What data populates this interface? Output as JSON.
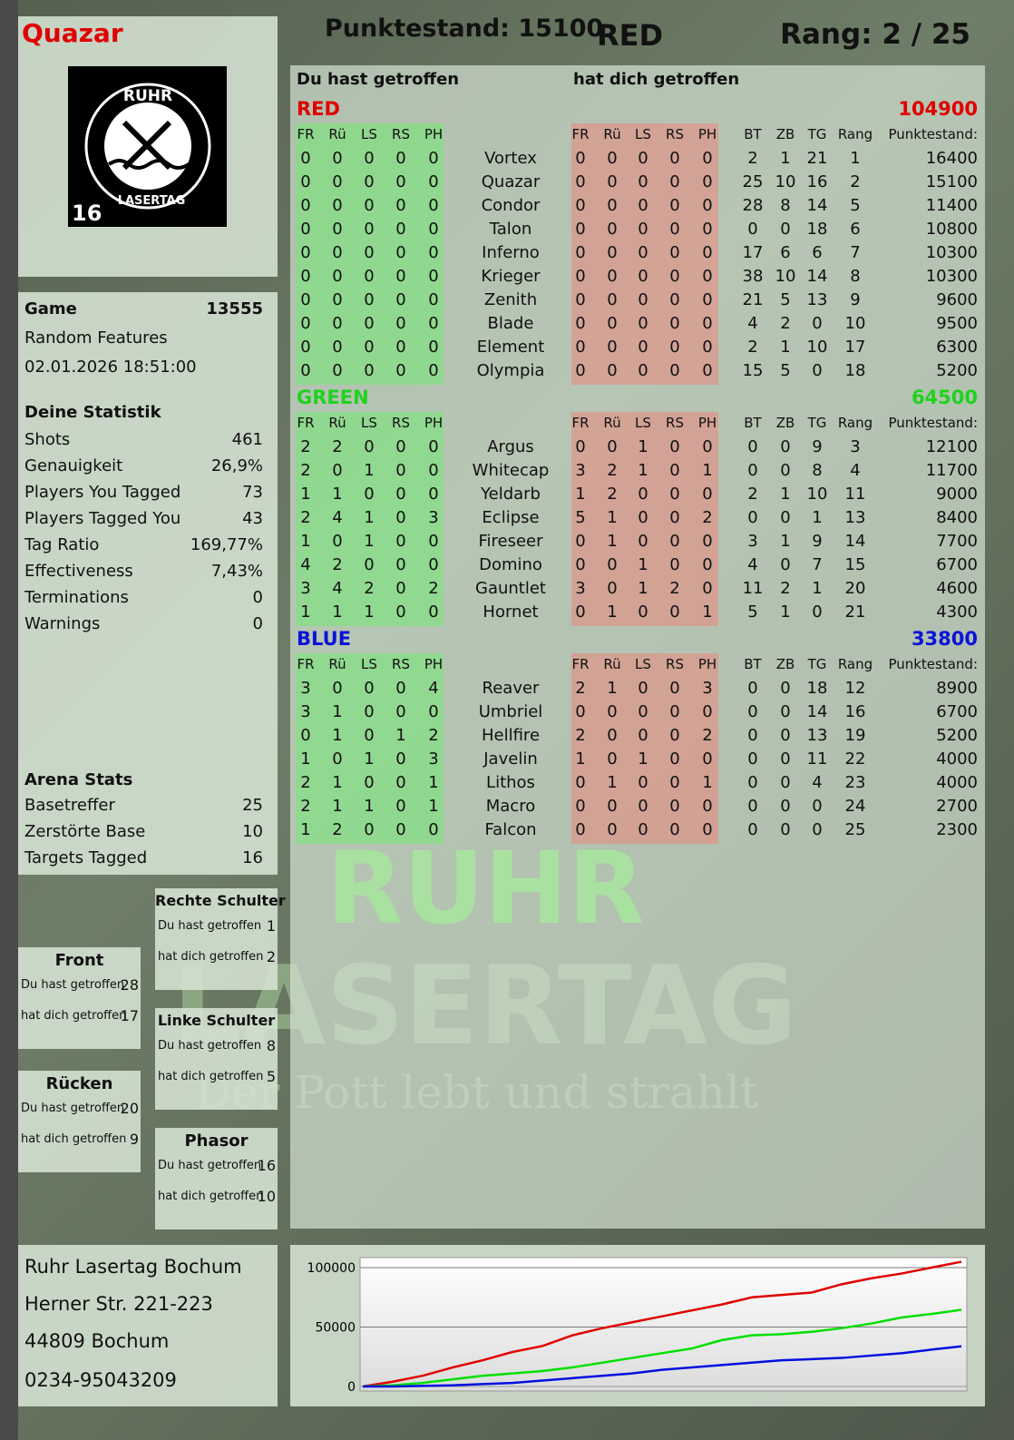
{
  "header": {
    "player": "Quazar",
    "score_label": "Punktestand: 15100",
    "team": "RED",
    "rank_label": "Rang: 2 / 25"
  },
  "logo": {
    "top": "RUHR",
    "bottom": "LASERTAG",
    "number": "16"
  },
  "game": {
    "label": "Game",
    "id": "13555",
    "mode": "Random Features",
    "datetime": "02.01.2026 18:51:00"
  },
  "stats": {
    "title": "Deine Statistik",
    "items": [
      {
        "label": "Shots",
        "value": "461"
      },
      {
        "label": "Genauigkeit",
        "value": "26,9%"
      },
      {
        "label": "Players You Tagged",
        "value": "73"
      },
      {
        "label": "Players Tagged You",
        "value": "43"
      },
      {
        "label": "Tag Ratio",
        "value": "169,77%"
      },
      {
        "label": "Effectiveness",
        "value": "7,43%"
      },
      {
        "label": "Terminations",
        "value": "0"
      },
      {
        "label": "Warnings",
        "value": "0"
      }
    ]
  },
  "arena": {
    "title": "Arena Stats",
    "items": [
      {
        "label": "Basetreffer",
        "value": "25"
      },
      {
        "label": "Zerstörte Base",
        "value": "10"
      },
      {
        "label": "Targets Tagged",
        "value": "16"
      }
    ]
  },
  "zones": [
    {
      "title": "Rechte Schulter",
      "hit_label": "Du hast getroffen",
      "hit": "1",
      "got_label": "hat dich getroffen",
      "got": "2"
    },
    {
      "title": "Front",
      "hit_label": "Du hast getroffen",
      "hit": "28",
      "got_label": "hat dich getroffen",
      "got": "17"
    },
    {
      "title": "Linke Schulter",
      "hit_label": "Du hast getroffen",
      "hit": "8",
      "got_label": "hat dich getroffen",
      "got": "5"
    },
    {
      "title": "Rücken",
      "hit_label": "Du hast getroffen",
      "hit": "20",
      "got_label": "hat dich getroffen",
      "got": "9"
    },
    {
      "title": "Phasor",
      "hit_label": "Du hast getroffen",
      "hit": "16",
      "got_label": "hat dich getroffen",
      "got": "10"
    }
  ],
  "address": {
    "line1": "Ruhr Lasertag Bochum",
    "line2": "Herner Str. 221-223",
    "line3": "44809 Bochum",
    "line4": "0234-95043209"
  },
  "table": {
    "you_hit_label": "Du hast getroffen",
    "hit_you_label": "hat dich getroffen",
    "cols_hit": [
      "FR",
      "Rü",
      "LS",
      "RS",
      "PH"
    ],
    "cols_stats": [
      "BT",
      "ZB",
      "TG",
      "Rang"
    ],
    "score_col": "Punktestand:",
    "teams": [
      {
        "name": "RED",
        "total": "104900",
        "color": "#e00000",
        "rows": [
          [
            "0",
            "0",
            "0",
            "0",
            "0",
            "Vortex",
            "0",
            "0",
            "0",
            "0",
            "0",
            "2",
            "1",
            "21",
            "1",
            "16400"
          ],
          [
            "0",
            "0",
            "0",
            "0",
            "0",
            "Quazar",
            "0",
            "0",
            "0",
            "0",
            "0",
            "25",
            "10",
            "16",
            "2",
            "15100"
          ],
          [
            "0",
            "0",
            "0",
            "0",
            "0",
            "Condor",
            "0",
            "0",
            "0",
            "0",
            "0",
            "28",
            "8",
            "14",
            "5",
            "11400"
          ],
          [
            "0",
            "0",
            "0",
            "0",
            "0",
            "Talon",
            "0",
            "0",
            "0",
            "0",
            "0",
            "0",
            "0",
            "18",
            "6",
            "10800"
          ],
          [
            "0",
            "0",
            "0",
            "0",
            "0",
            "Inferno",
            "0",
            "0",
            "0",
            "0",
            "0",
            "17",
            "6",
            "6",
            "7",
            "10300"
          ],
          [
            "0",
            "0",
            "0",
            "0",
            "0",
            "Krieger",
            "0",
            "0",
            "0",
            "0",
            "0",
            "38",
            "10",
            "14",
            "8",
            "10300"
          ],
          [
            "0",
            "0",
            "0",
            "0",
            "0",
            "Zenith",
            "0",
            "0",
            "0",
            "0",
            "0",
            "21",
            "5",
            "13",
            "9",
            "9600"
          ],
          [
            "0",
            "0",
            "0",
            "0",
            "0",
            "Blade",
            "0",
            "0",
            "0",
            "0",
            "0",
            "4",
            "2",
            "0",
            "10",
            "9500"
          ],
          [
            "0",
            "0",
            "0",
            "0",
            "0",
            "Element",
            "0",
            "0",
            "0",
            "0",
            "0",
            "2",
            "1",
            "10",
            "17",
            "6300"
          ],
          [
            "0",
            "0",
            "0",
            "0",
            "0",
            "Olympia",
            "0",
            "0",
            "0",
            "0",
            "0",
            "15",
            "5",
            "0",
            "18",
            "5200"
          ]
        ]
      },
      {
        "name": "GREEN",
        "total": "64500",
        "color": "#1fd21f",
        "rows": [
          [
            "2",
            "2",
            "0",
            "0",
            "0",
            "Argus",
            "0",
            "0",
            "1",
            "0",
            "0",
            "0",
            "0",
            "9",
            "3",
            "12100"
          ],
          [
            "2",
            "0",
            "1",
            "0",
            "0",
            "Whitecap",
            "3",
            "2",
            "1",
            "0",
            "1",
            "0",
            "0",
            "8",
            "4",
            "11700"
          ],
          [
            "1",
            "1",
            "0",
            "0",
            "0",
            "Yeldarb",
            "1",
            "2",
            "0",
            "0",
            "0",
            "2",
            "1",
            "10",
            "11",
            "9000"
          ],
          [
            "2",
            "4",
            "1",
            "0",
            "3",
            "Eclipse",
            "5",
            "1",
            "0",
            "0",
            "2",
            "0",
            "0",
            "1",
            "13",
            "8400"
          ],
          [
            "1",
            "0",
            "1",
            "0",
            "0",
            "Fireseer",
            "0",
            "1",
            "0",
            "0",
            "0",
            "3",
            "1",
            "9",
            "14",
            "7700"
          ],
          [
            "4",
            "2",
            "0",
            "0",
            "0",
            "Domino",
            "0",
            "0",
            "1",
            "0",
            "0",
            "4",
            "0",
            "7",
            "15",
            "6700"
          ],
          [
            "3",
            "4",
            "2",
            "0",
            "2",
            "Gauntlet",
            "3",
            "0",
            "1",
            "2",
            "0",
            "11",
            "2",
            "1",
            "20",
            "4600"
          ],
          [
            "1",
            "1",
            "1",
            "0",
            "0",
            "Hornet",
            "0",
            "1",
            "0",
            "0",
            "1",
            "5",
            "1",
            "0",
            "21",
            "4300"
          ]
        ]
      },
      {
        "name": "BLUE",
        "total": "33800",
        "color": "#0a14d8",
        "rows": [
          [
            "3",
            "0",
            "0",
            "0",
            "4",
            "Reaver",
            "2",
            "1",
            "0",
            "0",
            "3",
            "0",
            "0",
            "18",
            "12",
            "8900"
          ],
          [
            "3",
            "1",
            "0",
            "0",
            "0",
            "Umbriel",
            "0",
            "0",
            "0",
            "0",
            "0",
            "0",
            "0",
            "14",
            "16",
            "6700"
          ],
          [
            "0",
            "1",
            "0",
            "1",
            "2",
            "Hellfire",
            "2",
            "0",
            "0",
            "0",
            "2",
            "0",
            "0",
            "13",
            "19",
            "5200"
          ],
          [
            "1",
            "0",
            "1",
            "0",
            "3",
            "Javelin",
            "1",
            "0",
            "1",
            "0",
            "0",
            "0",
            "0",
            "11",
            "22",
            "4000"
          ],
          [
            "2",
            "1",
            "0",
            "0",
            "1",
            "Lithos",
            "0",
            "1",
            "0",
            "0",
            "1",
            "0",
            "0",
            "4",
            "23",
            "4000"
          ],
          [
            "2",
            "1",
            "1",
            "0",
            "1",
            "Macro",
            "0",
            "0",
            "0",
            "0",
            "0",
            "0",
            "0",
            "0",
            "24",
            "2700"
          ],
          [
            "1",
            "2",
            "0",
            "0",
            "0",
            "Falcon",
            "0",
            "0",
            "0",
            "0",
            "0",
            "0",
            "0",
            "0",
            "25",
            "2300"
          ]
        ]
      }
    ]
  },
  "watermark": {
    "line1": "RUHR",
    "line2": "LASERTAG",
    "line3": "Der Pott lebt und strahlt"
  },
  "chart_data": {
    "type": "line",
    "ylim": [
      0,
      110000
    ],
    "yticks": [
      "0",
      "50000",
      "100000"
    ],
    "grid": true,
    "series": [
      {
        "color": "#e00000",
        "values": [
          0,
          4000,
          9000,
          16000,
          22000,
          29000,
          34000,
          43000,
          49000,
          54000,
          59000,
          64000,
          69000,
          75000,
          77000,
          79000,
          86000,
          91000,
          95000,
          100000,
          104900
        ]
      },
      {
        "color": "#00e000",
        "values": [
          0,
          1000,
          3000,
          6000,
          9000,
          11000,
          13000,
          16000,
          20000,
          24000,
          28000,
          32000,
          39000,
          43000,
          44000,
          46000,
          49000,
          53000,
          58000,
          61000,
          64500
        ]
      },
      {
        "color": "#0010e0",
        "values": [
          0,
          0,
          500,
          1000,
          2000,
          3000,
          5000,
          7000,
          9000,
          11000,
          14000,
          16000,
          18000,
          20000,
          22000,
          23000,
          24000,
          26000,
          28000,
          31000,
          33800
        ]
      }
    ]
  }
}
